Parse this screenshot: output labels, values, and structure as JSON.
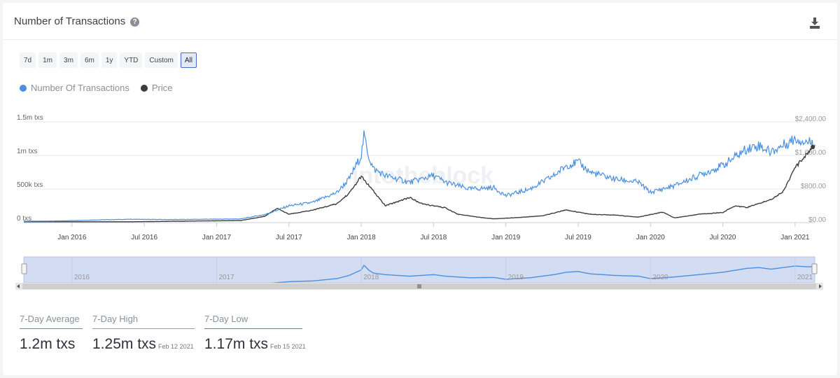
{
  "header": {
    "title": "Number of Transactions",
    "help_icon": "question-circle-icon",
    "download_icon": "download-icon"
  },
  "ranges": [
    {
      "label": "7d",
      "active": false
    },
    {
      "label": "1m",
      "active": false
    },
    {
      "label": "3m",
      "active": false
    },
    {
      "label": "6m",
      "active": false
    },
    {
      "label": "1y",
      "active": false
    },
    {
      "label": "YTD",
      "active": false
    },
    {
      "label": "Custom",
      "active": false
    },
    {
      "label": "All",
      "active": true
    }
  ],
  "watermark": "intotheblock",
  "colors": {
    "transactions": "#4a8fe0",
    "price": "#3d3d3d",
    "avg": "#4a8fe0",
    "high": "#7cc043",
    "low": "#e3543a",
    "navigator_fill": "#d2dcf2"
  },
  "chart_data": {
    "type": "line",
    "title": "Number of Transactions",
    "legend": [
      "Number Of Transactions",
      "Price"
    ],
    "x_range": [
      "2015-09",
      "2021-02"
    ],
    "x_ticks": [
      "Jan 2016",
      "Jul 2016",
      "Jan 2017",
      "Jul 2017",
      "Jan 2018",
      "Jul 2018",
      "Jan 2019",
      "Jul 2019",
      "Jan 2020",
      "Jul 2020",
      "Jan 2021"
    ],
    "y_left_ticks": [
      "0 txs",
      "500k txs",
      "1m txs",
      "1.5m txs"
    ],
    "y_left_range": [
      0,
      1500000
    ],
    "y_right_ticks": [
      "$0.00",
      "$800.00",
      "$1,600.00",
      "$2,400.00"
    ],
    "y_right_range": [
      0,
      2400
    ],
    "navigator_ticks": [
      "2016",
      "2017",
      "2018",
      "2019",
      "2020",
      "2021"
    ],
    "series": [
      {
        "name": "Number Of Transactions",
        "axis": "left",
        "points": [
          [
            "2015-09",
            20000
          ],
          [
            "2015-12",
            25000
          ],
          [
            "2016-03",
            40000
          ],
          [
            "2016-06",
            50000
          ],
          [
            "2016-09",
            45000
          ],
          [
            "2016-12",
            50000
          ],
          [
            "2017-03",
            55000
          ],
          [
            "2017-05",
            120000
          ],
          [
            "2017-07",
            250000
          ],
          [
            "2017-09",
            300000
          ],
          [
            "2017-11",
            450000
          ],
          [
            "2017-12",
            650000
          ],
          [
            "2018-01",
            1000000
          ],
          [
            "2018-01-08",
            1300000
          ],
          [
            "2018-01-20",
            980000
          ],
          [
            "2018-02",
            800000
          ],
          [
            "2018-03",
            700000
          ],
          [
            "2018-05",
            600000
          ],
          [
            "2018-07",
            700000
          ],
          [
            "2018-08",
            600000
          ],
          [
            "2018-10",
            500000
          ],
          [
            "2018-12",
            520000
          ],
          [
            "2019-01",
            400000
          ],
          [
            "2019-03",
            500000
          ],
          [
            "2019-05",
            700000
          ],
          [
            "2019-06",
            850000
          ],
          [
            "2019-07",
            900000
          ],
          [
            "2019-08",
            750000
          ],
          [
            "2019-10",
            650000
          ],
          [
            "2019-12",
            600000
          ],
          [
            "2020-01",
            450000
          ],
          [
            "2020-03",
            550000
          ],
          [
            "2020-05",
            700000
          ],
          [
            "2020-07",
            850000
          ],
          [
            "2020-09",
            1100000
          ],
          [
            "2020-10",
            1150000
          ],
          [
            "2020-11",
            1050000
          ],
          [
            "2020-12",
            1150000
          ],
          [
            "2021-01",
            1250000
          ],
          [
            "2021-02",
            1200000
          ]
        ]
      },
      {
        "name": "Price",
        "axis": "right",
        "points": [
          [
            "2015-09",
            20
          ],
          [
            "2016-06",
            20
          ],
          [
            "2016-12",
            40
          ],
          [
            "2017-03",
            50
          ],
          [
            "2017-05",
            150
          ],
          [
            "2017-06",
            340
          ],
          [
            "2017-07",
            200
          ],
          [
            "2017-09",
            300
          ],
          [
            "2017-11",
            450
          ],
          [
            "2017-12",
            700
          ],
          [
            "2018-01",
            1100
          ],
          [
            "2018-02",
            750
          ],
          [
            "2018-03",
            400
          ],
          [
            "2018-05",
            600
          ],
          [
            "2018-06",
            450
          ],
          [
            "2018-08",
            350
          ],
          [
            "2018-09",
            200
          ],
          [
            "2018-11",
            120
          ],
          [
            "2018-12",
            90
          ],
          [
            "2019-02",
            120
          ],
          [
            "2019-04",
            160
          ],
          [
            "2019-06",
            300
          ],
          [
            "2019-08",
            200
          ],
          [
            "2019-10",
            180
          ],
          [
            "2019-12",
            130
          ],
          [
            "2020-02",
            250
          ],
          [
            "2020-03",
            110
          ],
          [
            "2020-05",
            200
          ],
          [
            "2020-07",
            240
          ],
          [
            "2020-08",
            400
          ],
          [
            "2020-09",
            360
          ],
          [
            "2020-11",
            550
          ],
          [
            "2020-12",
            740
          ],
          [
            "2021-01",
            1300
          ],
          [
            "2021-02-05",
            1700
          ],
          [
            "2021-02-15",
            1800
          ]
        ]
      }
    ]
  },
  "stats": [
    {
      "label": "7-Day Average",
      "value": "1.2m txs",
      "date": ""
    },
    {
      "label": "7-Day High",
      "value": "1.25m txs",
      "date": "Feb 12 2021"
    },
    {
      "label": "7-Day Low",
      "value": "1.17m txs",
      "date": "Feb 15 2021"
    }
  ]
}
